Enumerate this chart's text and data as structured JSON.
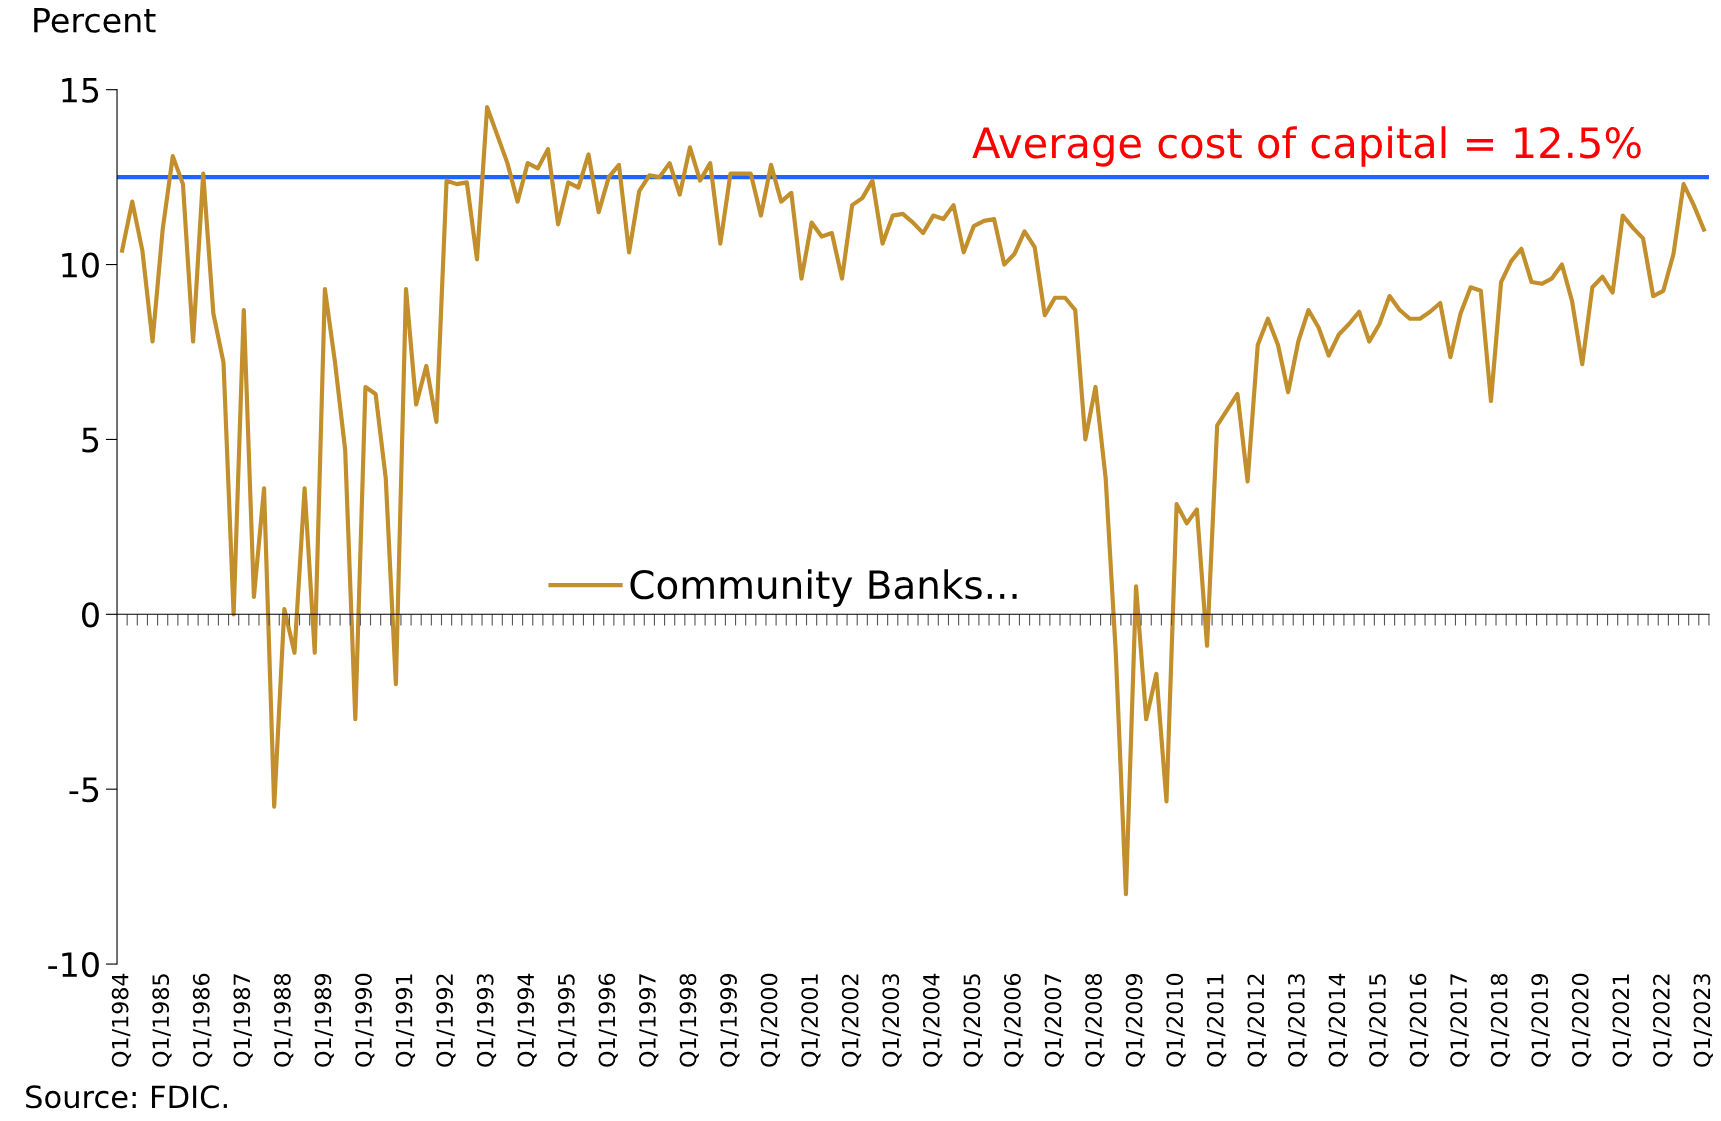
{
  "chart_data": {
    "type": "line",
    "ylabel": "Percent",
    "categories": [
      "Q1/1984",
      null,
      null,
      null,
      "Q1/1985",
      null,
      null,
      null,
      "Q1/1986",
      null,
      null,
      null,
      "Q1/1987",
      null,
      null,
      null,
      "Q1/1988",
      null,
      null,
      null,
      "Q1/1989",
      null,
      null,
      null,
      "Q1/1990",
      null,
      null,
      null,
      "Q1/1991",
      null,
      null,
      null,
      "Q1/1992",
      null,
      null,
      null,
      "Q1/1993",
      null,
      null,
      null,
      "Q1/1994",
      null,
      null,
      null,
      "Q1/1995",
      null,
      null,
      null,
      "Q1/1996",
      null,
      null,
      null,
      "Q1/1997",
      null,
      null,
      null,
      "Q1/1998",
      null,
      null,
      null,
      "Q1/1999",
      null,
      null,
      null,
      "Q1/2000",
      null,
      null,
      null,
      "Q1/2001",
      null,
      null,
      null,
      "Q1/2002",
      null,
      null,
      null,
      "Q1/2003",
      null,
      null,
      null,
      "Q1/2004",
      null,
      null,
      null,
      "Q1/2005",
      null,
      null,
      null,
      "Q1/2006",
      null,
      null,
      null,
      "Q1/2007",
      null,
      null,
      null,
      "Q1/2008",
      null,
      null,
      null,
      "Q1/2009",
      null,
      null,
      null,
      "Q1/2010",
      null,
      null,
      null,
      "Q1/2011",
      null,
      null,
      null,
      "Q1/2012",
      null,
      null,
      null,
      "Q1/2013",
      null,
      null,
      null,
      "Q1/2014",
      null,
      null,
      null,
      "Q1/2015",
      null,
      null,
      null,
      "Q1/2016",
      null,
      null,
      null,
      "Q1/2017",
      null,
      null,
      null,
      "Q1/2018",
      null,
      null,
      null,
      "Q1/2019",
      null,
      null,
      null,
      "Q1/2020",
      null,
      null,
      null,
      "Q1/2021",
      null,
      null,
      null,
      "Q1/2022",
      null,
      null,
      null,
      "Q1/2023"
    ],
    "series": [
      {
        "name": "Community Banks...",
        "color": "#c28f2c",
        "values": [
          10.4,
          11.8,
          10.4,
          7.8,
          11.0,
          13.1,
          12.3,
          7.8,
          12.6,
          8.6,
          7.2,
          0.0,
          8.7,
          0.5,
          3.6,
          -5.5,
          0.15,
          -1.1,
          3.6,
          -1.1,
          9.3,
          7.2,
          4.7,
          -3.0,
          6.5,
          6.3,
          3.9,
          -2.0,
          9.3,
          6.0,
          7.1,
          5.5,
          12.4,
          12.3,
          12.35,
          10.15,
          14.5,
          13.7,
          12.9,
          11.8,
          12.9,
          12.75,
          13.3,
          11.15,
          12.35,
          12.2,
          13.15,
          11.5,
          12.5,
          12.85,
          10.35,
          12.1,
          12.55,
          12.5,
          12.9,
          12.0,
          13.35,
          12.4,
          12.9,
          10.6,
          12.6,
          12.6,
          12.6,
          11.4,
          12.85,
          11.8,
          12.05,
          9.6,
          11.2,
          10.8,
          10.9,
          9.6,
          11.7,
          11.9,
          12.4,
          10.6,
          11.4,
          11.45,
          11.2,
          10.9,
          11.4,
          11.3,
          11.7,
          10.35,
          11.1,
          11.25,
          11.3,
          10.0,
          10.3,
          10.95,
          10.5,
          8.55,
          9.05,
          9.05,
          8.7,
          5.0,
          6.5,
          3.9,
          -1.1,
          -8.0,
          0.8,
          -3.0,
          -1.7,
          -5.35,
          3.15,
          2.6,
          3.0,
          -0.9,
          5.4,
          5.85,
          6.3,
          3.8,
          7.7,
          8.45,
          7.7,
          6.35,
          7.8,
          8.7,
          8.2,
          7.4,
          8.0,
          8.3,
          8.65,
          7.8,
          8.3,
          9.1,
          8.7,
          8.45,
          8.45,
          8.65,
          8.9,
          7.35,
          8.6,
          9.35,
          9.25,
          6.1,
          9.5,
          10.1,
          10.45,
          9.5,
          9.45,
          9.6,
          10.0,
          8.95,
          7.15,
          9.35,
          9.65,
          9.2,
          11.4,
          11.05,
          10.75,
          9.1,
          9.25,
          10.3,
          12.3,
          11.7,
          11.0
        ]
      }
    ],
    "ylim": [
      -10,
      15
    ],
    "yticks": [
      15,
      10,
      5,
      0,
      -5,
      -10
    ],
    "ref_lines": [
      {
        "axis": "y",
        "value": 12.5,
        "label": "Average cost of capital = 12.5%",
        "color": "#1a66ff"
      }
    ],
    "annotations": [
      "Source: FDIC."
    ],
    "legend": "center",
    "marker": "none",
    "line_style": "solid"
  }
}
